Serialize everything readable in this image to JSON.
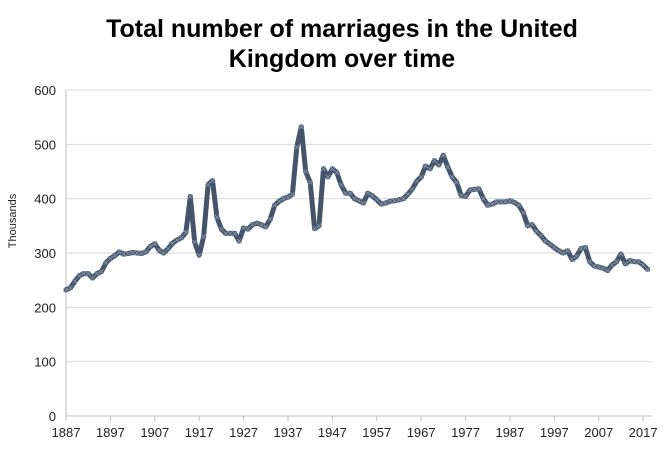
{
  "chart_data": {
    "type": "line",
    "title_lines": [
      "Total number of marriages in the United",
      "Kingdom over time"
    ],
    "xlabel": "",
    "ylabel": "Thousands",
    "ylim": [
      0,
      600
    ],
    "yticks": [
      0,
      100,
      200,
      300,
      400,
      500,
      600
    ],
    "xlim": [
      1887,
      2019
    ],
    "xticks": [
      1887,
      1897,
      1907,
      1917,
      1927,
      1937,
      1947,
      1957,
      1967,
      1977,
      1987,
      1997,
      2007,
      2017
    ],
    "grid": true,
    "legend": "none",
    "colors": {
      "line": "#44546a",
      "marker": "#7f8fa6",
      "grid": "#d9d9d9",
      "axis": "#bfbfbf"
    },
    "series": [
      {
        "x": [
          1887,
          1888,
          1889,
          1890,
          1891,
          1892,
          1893,
          1894,
          1895,
          1896,
          1897,
          1898,
          1899,
          1900,
          1901,
          1902,
          1903,
          1904,
          1905,
          1906,
          1907,
          1908,
          1909,
          1910,
          1911,
          1912,
          1913,
          1914,
          1915,
          1916,
          1917,
          1918,
          1919,
          1920,
          1921,
          1922,
          1923,
          1924,
          1925,
          1926,
          1927,
          1928,
          1929,
          1930,
          1931,
          1932,
          1933,
          1934,
          1935,
          1936,
          1937,
          1938,
          1939,
          1940,
          1941,
          1942,
          1943,
          1944,
          1945,
          1946,
          1947,
          1948,
          1949,
          1950,
          1951,
          1952,
          1953,
          1954,
          1955,
          1956,
          1957,
          1958,
          1959,
          1960,
          1961,
          1962,
          1963,
          1964,
          1965,
          1966,
          1967,
          1968,
          1969,
          1970,
          1971,
          1972,
          1973,
          1974,
          1975,
          1976,
          1977,
          1978,
          1979,
          1980,
          1981,
          1982,
          1983,
          1984,
          1985,
          1986,
          1987,
          1988,
          1989,
          1990,
          1991,
          1992,
          1993,
          1994,
          1995,
          1996,
          1997,
          1998,
          1999,
          2000,
          2001,
          2002,
          2003,
          2004,
          2005,
          2006,
          2007,
          2008,
          2009,
          2010,
          2011,
          2012,
          2013,
          2014,
          2015,
          2016,
          2017,
          2018
        ],
        "values": [
          232,
          236,
          248,
          258,
          262,
          262,
          254,
          262,
          266,
          282,
          290,
          295,
          302,
          298,
          299,
          301,
          300,
          299,
          302,
          312,
          317,
          305,
          300,
          308,
          318,
          324,
          328,
          338,
          404,
          320,
          296,
          330,
          426,
          433,
          366,
          344,
          336,
          336,
          336,
          322,
          346,
          344,
          352,
          355,
          352,
          348,
          362,
          388,
          395,
          400,
          403,
          408,
          495,
          532,
          450,
          430,
          345,
          350,
          455,
          440,
          455,
          448,
          425,
          410,
          410,
          400,
          396,
          392,
          410,
          405,
          398,
          390,
          392,
          395,
          396,
          398,
          400,
          408,
          418,
          432,
          440,
          460,
          455,
          470,
          462,
          480,
          458,
          440,
          430,
          406,
          404,
          416,
          417,
          418,
          400,
          388,
          390,
          394,
          394,
          394,
          396,
          393,
          388,
          374,
          350,
          352,
          340,
          332,
          322,
          316,
          310,
          304,
          300,
          304,
          288,
          294,
          308,
          310,
          284,
          276,
          274,
          272,
          268,
          278,
          284,
          298,
          280,
          286,
          284,
          284,
          278,
          270
        ]
      }
    ]
  }
}
